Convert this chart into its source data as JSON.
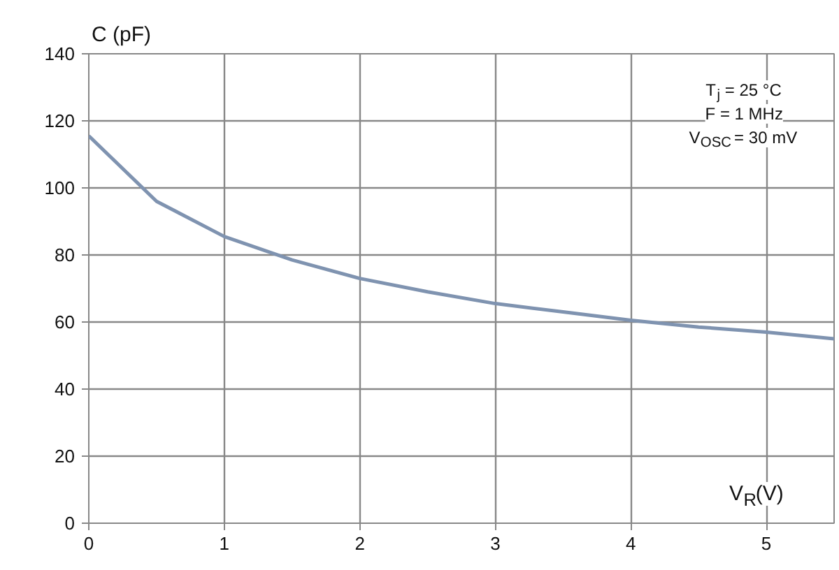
{
  "chart_data": {
    "type": "line",
    "xlabel": "V$_{R}$(V)",
    "ylabel": "C (pF)",
    "annotations": [
      "T$_{j}$ = 25 °C",
      "F = 1 MHz",
      "V$_{OSC}$ = 30 mV"
    ],
    "x": [
      0,
      0.5,
      1,
      1.5,
      2,
      2.5,
      3,
      3.5,
      4,
      4.5,
      5,
      5.5
    ],
    "series": [
      {
        "color": "#7f93b0",
        "values": [
          115.5,
          96,
          85.5,
          78.5,
          73,
          69,
          65.5,
          63,
          60.5,
          58.5,
          57,
          55
        ]
      }
    ],
    "xlim": [
      0,
      5.5
    ],
    "ylim": [
      0,
      140
    ],
    "xticks": [
      0,
      1,
      2,
      3,
      4,
      5
    ],
    "yticks": [
      0,
      20,
      40,
      60,
      80,
      100,
      120,
      140
    ],
    "grid": true,
    "marker": "none",
    "line_style": "solid"
  }
}
